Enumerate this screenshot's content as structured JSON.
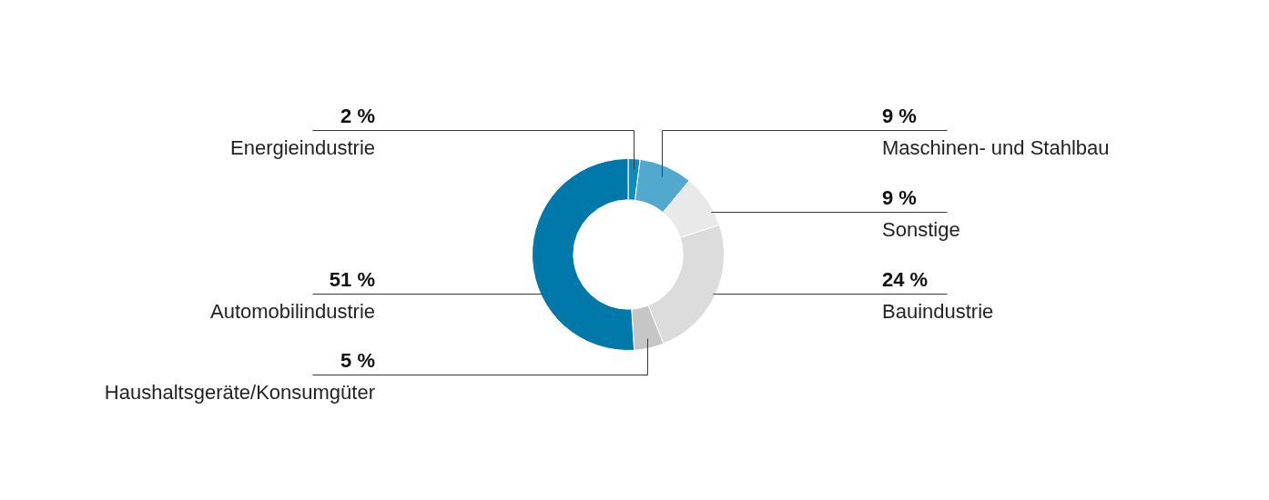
{
  "chart_data": {
    "type": "doughnut",
    "categories": [
      "Energieindustrie",
      "Maschinen- und Stahlbau",
      "Sonstige",
      "Bauindustrie",
      "Haushaltsgeräte/Konsumgüter",
      "Automobilindustrie"
    ],
    "values": [
      2,
      9,
      9,
      24,
      5,
      51
    ],
    "value_labels": [
      "2 %",
      "9 %",
      "9 %",
      "24 %",
      "5 %",
      "51 %"
    ],
    "colors": [
      "#0a8dbd",
      "#52a9d0",
      "#e9e9e9",
      "#dcdcdc",
      "#c6c6c6",
      "#0078a9"
    ],
    "data_labels": true,
    "legend": null
  }
}
